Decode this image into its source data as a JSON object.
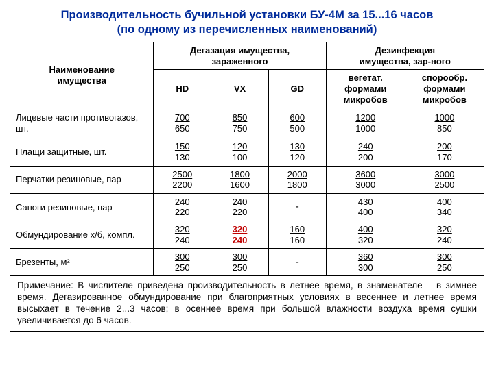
{
  "title_line1": "Производительность бучильной установки БУ-4М за 15...16 часов",
  "title_line2": "(по одному из перечисленных наименований)",
  "header": {
    "property": "Наименование\nимущества",
    "degas": "Дегазация имущества,\nзараженного",
    "disinf": "Дезинфекция\nимущества, зар-ного",
    "hd": "HD",
    "vx": "VX",
    "gd": "GD",
    "veg": "вегетат.\nформами\nмикробов",
    "spor": "спорообр.\nформами\nмикробов"
  },
  "rows": [
    {
      "name": "Лицевые части противогазов, шт.",
      "v": [
        [
          "700",
          "650"
        ],
        [
          "850",
          "750"
        ],
        [
          "600",
          "500"
        ],
        [
          "1200",
          "1000"
        ],
        [
          "1000",
          "850"
        ]
      ],
      "red": [
        false,
        false,
        false,
        false,
        false
      ]
    },
    {
      "name": "Плащи защитные, шт.",
      "v": [
        [
          "150",
          "130"
        ],
        [
          "120",
          "100"
        ],
        [
          "130",
          "120"
        ],
        [
          "240",
          "200"
        ],
        [
          "200",
          "170"
        ]
      ],
      "red": [
        false,
        false,
        false,
        false,
        false
      ]
    },
    {
      "name": "Перчатки резиновые, пар",
      "v": [
        [
          "2500",
          "2200"
        ],
        [
          "1800",
          "1600"
        ],
        [
          "2000",
          "1800"
        ],
        [
          "3600",
          "3000"
        ],
        [
          "3000",
          "2500"
        ]
      ],
      "red": [
        false,
        false,
        false,
        false,
        false
      ]
    },
    {
      "name": "Сапоги резиновые, пар",
      "v": [
        [
          "240",
          "220"
        ],
        [
          "240",
          "220"
        ],
        [
          "-",
          ""
        ],
        [
          "430",
          "400"
        ],
        [
          "400",
          "340"
        ]
      ],
      "red": [
        false,
        false,
        false,
        false,
        false
      ]
    },
    {
      "name": "Обмундирование х/б, компл.",
      "v": [
        [
          "320",
          "240"
        ],
        [
          "320",
          "240"
        ],
        [
          "160",
          "160"
        ],
        [
          "400",
          "320"
        ],
        [
          "320",
          "240"
        ]
      ],
      "red": [
        false,
        true,
        false,
        false,
        false
      ]
    },
    {
      "name": "Брезенты, м²",
      "v": [
        [
          "300",
          "250"
        ],
        [
          "300",
          "250"
        ],
        [
          "-",
          ""
        ],
        [
          "360",
          "300"
        ],
        [
          "300",
          "250"
        ]
      ],
      "red": [
        false,
        false,
        false,
        false,
        false
      ]
    }
  ],
  "note": "Примечание: В числителе приведена производительность в летнее время, в знаменателе – в зимнее время. Дегазированное обмундирование при благоприятных условиях в весеннее и летнее время высыхает в течение 2...3 часов; в осеннее время при большой влажности воздуха время сушки увеличивается до 6 часов."
}
